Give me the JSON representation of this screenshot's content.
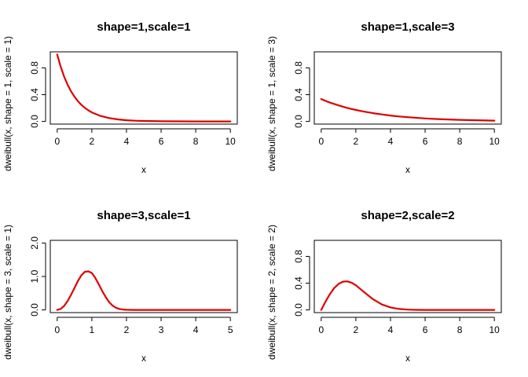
{
  "chart_data": [
    {
      "type": "line",
      "title": "shape=1,scale=1",
      "xlabel": "x",
      "ylabel": "dweibull(x, shape = 1, scale = 1)",
      "xlim": [
        0,
        10
      ],
      "ylim": [
        0,
        1
      ],
      "xticks": [
        0,
        2,
        4,
        6,
        8,
        10
      ],
      "yticks": [
        0.0,
        0.4,
        0.8
      ],
      "ytick_labels": [
        "0.0",
        "0.4",
        "0.8"
      ],
      "line_color": "#dd0000",
      "series": [
        {
          "x": [
            0,
            0.2,
            0.4,
            0.6,
            0.8,
            1,
            1.2,
            1.4,
            1.6,
            1.8,
            2,
            2.5,
            3,
            3.5,
            4,
            4.5,
            5,
            6,
            7,
            8,
            9,
            10
          ],
          "y": [
            1.0,
            0.819,
            0.67,
            0.549,
            0.449,
            0.368,
            0.301,
            0.247,
            0.202,
            0.165,
            0.135,
            0.082,
            0.05,
            0.03,
            0.018,
            0.011,
            0.007,
            0.002,
            0.001,
            0.0003,
            0.0001,
            5e-05
          ]
        }
      ]
    },
    {
      "type": "line",
      "title": "shape=1,scale=3",
      "xlabel": "x",
      "ylabel": "dweibull(x, shape = 1, scale = 3)",
      "xlim": [
        0,
        10
      ],
      "ylim": [
        0,
        1
      ],
      "xticks": [
        0,
        2,
        4,
        6,
        8,
        10
      ],
      "yticks": [
        0.0,
        0.4,
        0.8
      ],
      "ytick_labels": [
        "0.0",
        "0.4",
        "0.8"
      ],
      "line_color": "#dd0000",
      "series": [
        {
          "x": [
            0,
            0.5,
            1,
            1.5,
            2,
            2.5,
            3,
            3.5,
            4,
            4.5,
            5,
            6,
            7,
            8,
            9,
            10
          ],
          "y": [
            0.333,
            0.282,
            0.239,
            0.202,
            0.171,
            0.145,
            0.123,
            0.104,
            0.088,
            0.074,
            0.063,
            0.045,
            0.032,
            0.023,
            0.017,
            0.012
          ]
        }
      ]
    },
    {
      "type": "line",
      "title": "shape=3,scale=1",
      "xlabel": "x",
      "ylabel": "dweibull(x, shape = 3, scale = 1)",
      "xlim": [
        0,
        5
      ],
      "ylim": [
        0,
        2
      ],
      "xticks": [
        0,
        1,
        2,
        3,
        4,
        5
      ],
      "yticks": [
        0.0,
        1.0,
        2.0
      ],
      "ytick_labels": [
        "0.0",
        "1.0",
        "2.0"
      ],
      "line_color": "#dd0000",
      "series": [
        {
          "x": [
            0,
            0.1,
            0.2,
            0.3,
            0.4,
            0.5,
            0.6,
            0.7,
            0.8,
            0.9,
            1.0,
            1.1,
            1.2,
            1.3,
            1.4,
            1.5,
            1.6,
            1.7,
            1.8,
            1.9,
            2.0,
            2.2,
            2.5,
            3,
            4,
            5
          ],
          "y": [
            0,
            0.03,
            0.119,
            0.264,
            0.45,
            0.662,
            0.871,
            1.04,
            1.142,
            1.153,
            1.104,
            0.956,
            0.766,
            0.566,
            0.384,
            0.232,
            0.129,
            0.064,
            0.029,
            0.011,
            0.004,
            0.0003,
            0,
            0,
            0,
            0
          ]
        }
      ]
    },
    {
      "type": "line",
      "title": "shape=2,scale=2",
      "xlabel": "x",
      "ylabel": "dweibull(x, shape = 2, scale = 2)",
      "xlim": [
        0,
        10
      ],
      "ylim": [
        0,
        1
      ],
      "xticks": [
        0,
        2,
        4,
        6,
        8,
        10
      ],
      "yticks": [
        0.0,
        0.4,
        0.8
      ],
      "ytick_labels": [
        "0.0",
        "0.4",
        "0.8"
      ],
      "line_color": "#dd0000",
      "series": [
        {
          "x": [
            0,
            0.25,
            0.5,
            0.75,
            1,
            1.25,
            1.5,
            1.75,
            2,
            2.5,
            3,
            3.5,
            4,
            4.5,
            5,
            5.5,
            6,
            7,
            8,
            9,
            10
          ],
          "y": [
            0,
            0.124,
            0.235,
            0.326,
            0.389,
            0.423,
            0.427,
            0.407,
            0.368,
            0.262,
            0.158,
            0.082,
            0.037,
            0.014,
            0.005,
            0.001,
            0.0004,
            0,
            0,
            0,
            0
          ]
        }
      ]
    }
  ]
}
